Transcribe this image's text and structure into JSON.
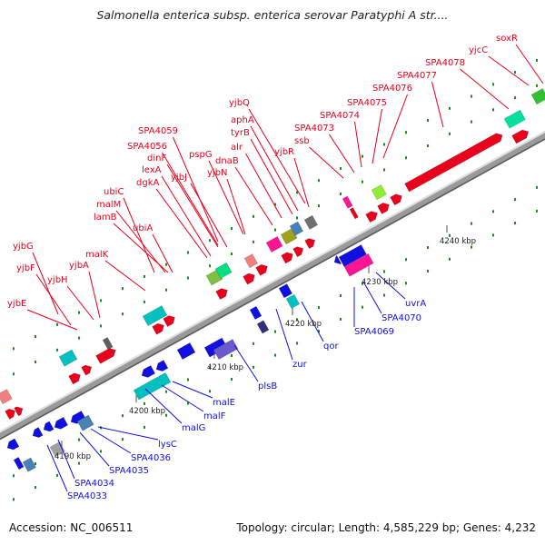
{
  "title": "Salmonella enterica subsp. enterica serovar Paratyphi A str....",
  "accession": "Accession: NC_006511",
  "summary": "Topology: circular; Length: 4,585,229 bp; Genes: 4,232",
  "colors": {
    "forward": "#e8001c",
    "reverse": "#1010e0",
    "axis": "#888888"
  },
  "ticks": [
    "4190 kbp",
    "4200 kbp",
    "4210 kbp",
    "4220 kbp",
    "4230 kbp",
    "4240 kbp"
  ],
  "forward_genes": [
    "yjbE",
    "yjbF",
    "yjbG",
    "yjbH",
    "yjbA",
    "malK",
    "lamB",
    "malM",
    "ubiC",
    "ubiA",
    "dgkA",
    "lexA",
    "dinF",
    "SPA4056",
    "SPA4059",
    "yjbJ",
    "yjbN",
    "pspG",
    "dnaB",
    "alr",
    "tyrB",
    "aphA",
    "yjbQ",
    "yjbR",
    "ssb",
    "SPA4073",
    "SPA4074",
    "SPA4075",
    "SPA4076",
    "SPA4077",
    "SPA4078",
    "yjcC",
    "soxR"
  ],
  "reverse_genes": [
    "SPA4033",
    "SPA4034",
    "SPA4035",
    "SPA4036",
    "lysC",
    "malG",
    "malF",
    "malE",
    "plsB",
    "zur",
    "qor",
    "SPA4069",
    "SPA4070",
    "uvrA"
  ]
}
